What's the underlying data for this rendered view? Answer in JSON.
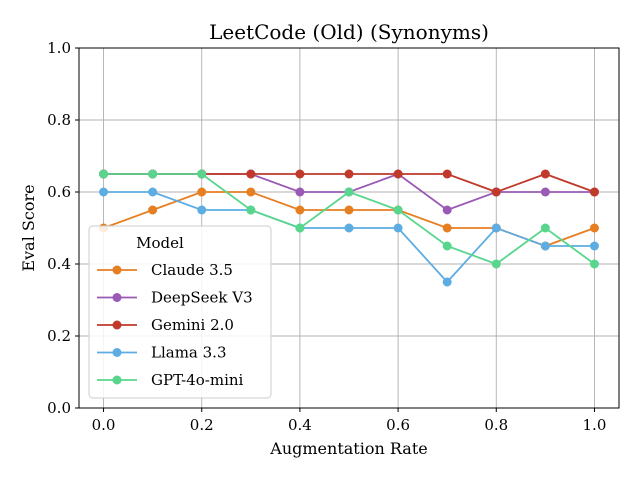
{
  "chart_data": {
    "type": "line",
    "title": "LeetCode (Old) (Synonyms)",
    "xlabel": "Augmentation Rate",
    "ylabel": "Eval Score",
    "x": [
      0.0,
      0.1,
      0.2,
      0.3,
      0.4,
      0.5,
      0.6,
      0.7,
      0.8,
      0.9,
      1.0
    ],
    "xlim": [
      -0.05,
      1.05
    ],
    "ylim": [
      0.0,
      1.0
    ],
    "xticks": [
      "0.0",
      "0.2",
      "0.4",
      "0.6",
      "0.8",
      "1.0"
    ],
    "yticks": [
      "0.0",
      "0.2",
      "0.4",
      "0.6",
      "0.8",
      "1.0"
    ],
    "grid": true,
    "legend": {
      "title": "Model",
      "placement": "lower-left"
    },
    "series": [
      {
        "name": "Claude 3.5",
        "color": "#e67e22",
        "values": [
          0.5,
          0.55,
          0.6,
          0.6,
          0.55,
          0.55,
          0.55,
          0.5,
          0.5,
          0.45,
          0.5
        ]
      },
      {
        "name": "DeepSeek V3",
        "color": "#9b59b6",
        "values": [
          0.65,
          0.65,
          0.65,
          0.65,
          0.6,
          0.6,
          0.65,
          0.55,
          0.6,
          0.6,
          0.6
        ]
      },
      {
        "name": "Gemini 2.0",
        "color": "#c0392b",
        "values": [
          0.65,
          0.65,
          0.65,
          0.65,
          0.65,
          0.65,
          0.65,
          0.65,
          0.6,
          0.65,
          0.6
        ]
      },
      {
        "name": "Llama 3.3",
        "color": "#5dade2",
        "values": [
          0.6,
          0.6,
          0.55,
          0.55,
          0.5,
          0.5,
          0.5,
          0.35,
          0.5,
          0.45,
          0.45
        ]
      },
      {
        "name": "GPT-4o-mini",
        "color": "#58d68d",
        "values": [
          0.65,
          0.65,
          0.65,
          0.55,
          0.5,
          0.6,
          0.55,
          0.45,
          0.4,
          0.5,
          0.4
        ]
      }
    ]
  }
}
